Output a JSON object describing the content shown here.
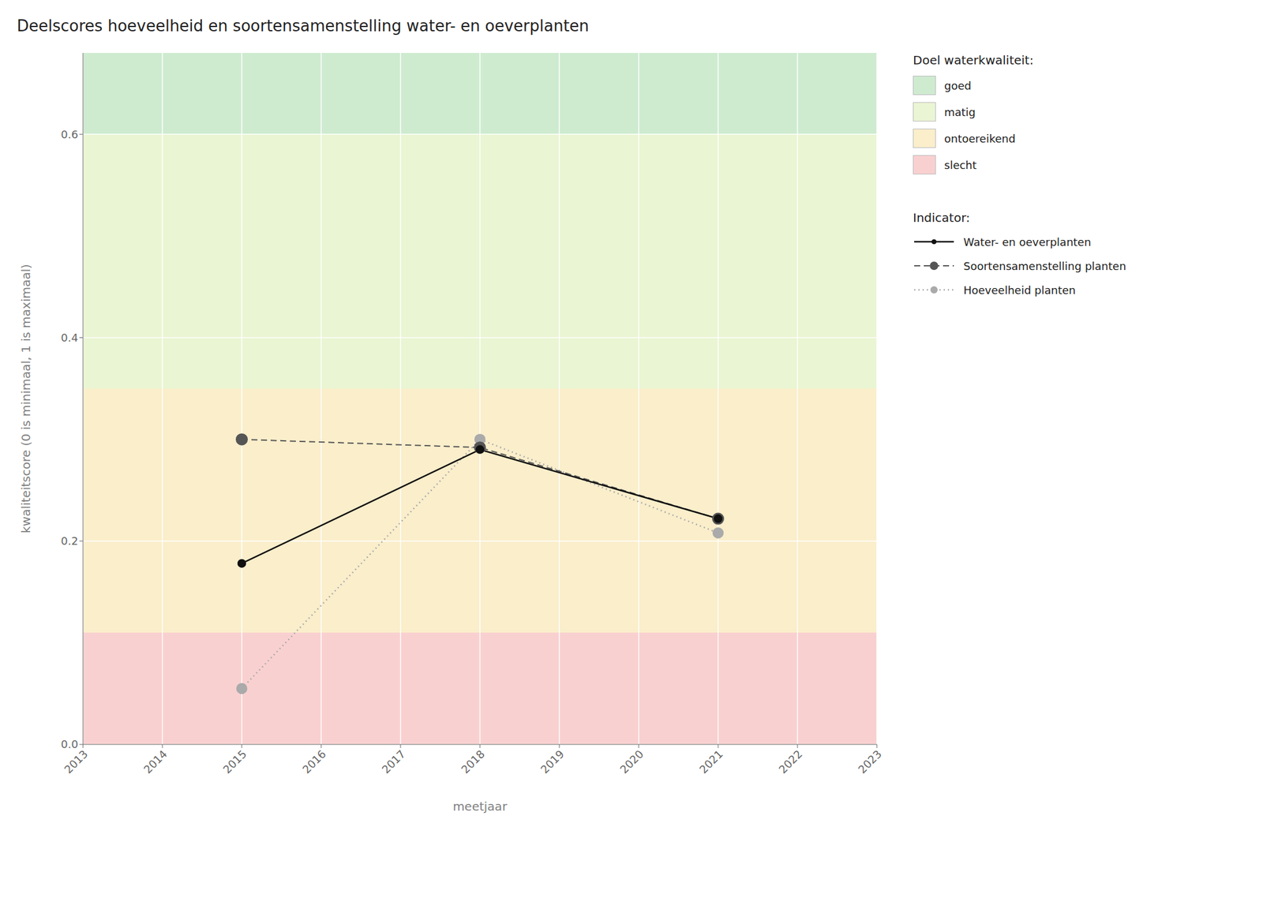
{
  "chart_data": {
    "type": "line",
    "title": "Deelscores hoeveelheid en soortensamenstelling water- en oeverplanten",
    "x_label": "meetjaar",
    "y_label": "kwaliteitscore (0 is minimaal, 1 is maximaal)",
    "x": [
      2015,
      2018,
      2021
    ],
    "xlim": [
      2013,
      2023
    ],
    "xticks": [
      2013,
      2014,
      2015,
      2016,
      2017,
      2018,
      2019,
      2020,
      2021,
      2022,
      2023
    ],
    "ylim": [
      0.0,
      0.68
    ],
    "yticks": [
      {
        "value": 0.0,
        "label": "0.0"
      },
      0.2,
      0.4,
      0.6
    ],
    "grid": true,
    "legend": "right",
    "series_legend_title": "Indicator:",
    "band_legend_title": "Doel waterkwaliteit:",
    "bands": [
      {
        "label": "goed",
        "ymin": 0.6,
        "ymax": 0.68,
        "color": "#ceebd0"
      },
      {
        "label": "matig",
        "ymin": 0.35,
        "ymax": 0.6,
        "color": "#eaf5d3"
      },
      {
        "label": "ontoereikend",
        "ymin": 0.11,
        "ymax": 0.35,
        "color": "#faeecb"
      },
      {
        "label": "slecht",
        "ymin": 0.0,
        "ymax": 0.11,
        "color": "#f9d0d0"
      }
    ],
    "series": [
      {
        "name": "Water- en oeverplanten",
        "color": "#111111",
        "line_style": "solid",
        "marker": "o",
        "values": [
          0.178,
          0.29,
          0.222
        ]
      },
      {
        "name": "Soortensamenstelling planten",
        "color": "#555555",
        "line_style": "dashed",
        "marker": "o",
        "values": [
          0.3,
          0.292,
          0.222
        ]
      },
      {
        "name": "Hoeveelheid planten",
        "color": "#aaaaaa",
        "line_style": "dotted",
        "marker": "o",
        "values": [
          0.055,
          0.3,
          0.208
        ]
      }
    ]
  }
}
